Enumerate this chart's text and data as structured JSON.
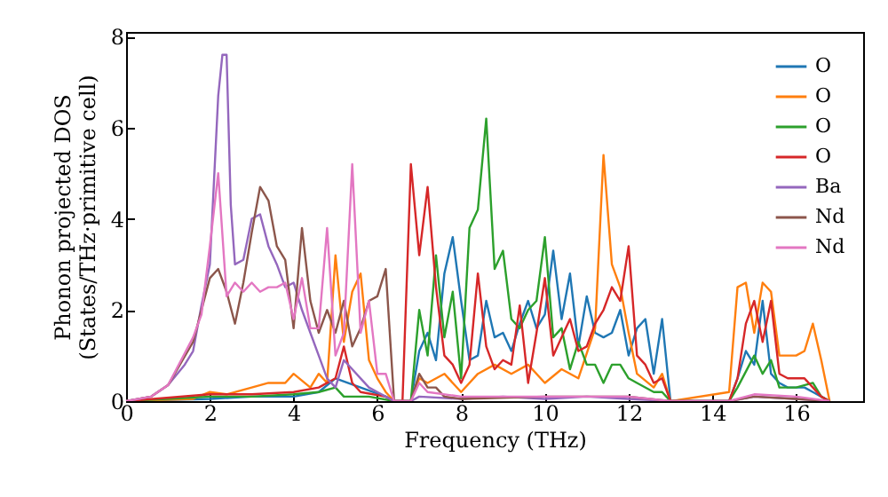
{
  "chart_data": {
    "type": "line",
    "xlabel": "Frequency (THz)",
    "ylabel": "Phonon projected DOS\n(States/THz·primitive cell)",
    "xlim": [
      0,
      17.6
    ],
    "ylim": [
      0,
      8.1
    ],
    "xticks": [
      0,
      2,
      4,
      6,
      8,
      10,
      12,
      14,
      16
    ],
    "yticks": [
      0,
      2,
      4,
      6,
      8
    ],
    "grid": false,
    "legend": "top right",
    "marker": "none",
    "line_style": "solid",
    "series": [
      {
        "name": "O",
        "color": "#1f77b4",
        "x": [
          0,
          2,
          3,
          4,
          4.6,
          5.0,
          5.6,
          6.2,
          6.4,
          6.8,
          7.0,
          7.2,
          7.4,
          7.6,
          7.8,
          8.0,
          8.2,
          8.4,
          8.6,
          8.8,
          9.0,
          9.2,
          9.4,
          9.6,
          9.8,
          10.0,
          10.2,
          10.4,
          10.6,
          10.8,
          11.0,
          11.2,
          11.4,
          11.6,
          11.8,
          12.0,
          12.2,
          12.4,
          12.6,
          12.8,
          13.0,
          14.4,
          14.6,
          14.8,
          15.0,
          15.2,
          15.4,
          15.6,
          15.8,
          16.0,
          16.2,
          16.4,
          16.6,
          16.8
        ],
        "values": [
          0,
          0.05,
          0.1,
          0.1,
          0.2,
          0.5,
          0.3,
          0.1,
          0,
          0,
          1.1,
          1.5,
          0.9,
          2.8,
          3.6,
          2.2,
          0.9,
          1.0,
          2.2,
          1.4,
          1.5,
          1.1,
          1.7,
          2.2,
          1.6,
          1.9,
          3.3,
          1.8,
          2.8,
          1.2,
          2.3,
          1.5,
          1.4,
          1.5,
          2.0,
          1.0,
          1.6,
          1.8,
          0.6,
          1.8,
          0,
          0,
          0.5,
          1.1,
          0.8,
          2.2,
          0.6,
          0.4,
          0.3,
          0.3,
          0.3,
          0.2,
          0.1,
          0
        ]
      },
      {
        "name": "O",
        "color": "#ff7f0e",
        "x": [
          0,
          1.6,
          2.0,
          2.4,
          3.0,
          3.4,
          3.8,
          4.0,
          4.4,
          4.6,
          4.8,
          5.0,
          5.2,
          5.4,
          5.6,
          5.8,
          6.0,
          6.2,
          6.4,
          6.8,
          7.0,
          7.2,
          7.6,
          8.0,
          8.4,
          8.8,
          9.2,
          9.6,
          10.0,
          10.4,
          10.8,
          11.2,
          11.4,
          11.6,
          11.8,
          12.0,
          12.2,
          12.6,
          12.8,
          13.0,
          14.4,
          14.6,
          14.8,
          15.0,
          15.2,
          15.4,
          15.6,
          15.8,
          16.0,
          16.2,
          16.4,
          16.6,
          16.8
        ],
        "values": [
          0,
          0.05,
          0.2,
          0.15,
          0.3,
          0.4,
          0.4,
          0.6,
          0.3,
          0.6,
          0.4,
          3.2,
          1.3,
          2.4,
          2.8,
          0.9,
          0.5,
          0.2,
          0,
          0,
          0.5,
          0.4,
          0.6,
          0.2,
          0.6,
          0.8,
          0.6,
          0.8,
          0.4,
          0.7,
          0.5,
          1.6,
          5.4,
          3.0,
          2.5,
          1.5,
          0.6,
          0.3,
          0.6,
          0,
          0.2,
          2.5,
          2.6,
          1.5,
          2.6,
          2.4,
          1.0,
          1.0,
          1.0,
          1.1,
          1.7,
          0.9,
          0
        ]
      },
      {
        "name": "O",
        "color": "#2ca02c",
        "x": [
          0,
          2,
          3,
          4,
          4.6,
          5.0,
          5.2,
          5.8,
          6.4,
          6.8,
          7.0,
          7.2,
          7.4,
          7.6,
          7.8,
          8.0,
          8.2,
          8.4,
          8.6,
          8.8,
          9.0,
          9.2,
          9.4,
          9.6,
          9.8,
          10.0,
          10.2,
          10.4,
          10.6,
          10.8,
          11.0,
          11.2,
          11.4,
          11.6,
          11.8,
          12.0,
          12.2,
          12.6,
          12.8,
          13.0,
          14.4,
          14.6,
          15.0,
          15.2,
          15.4,
          15.6,
          16.0,
          16.4,
          16.6,
          16.8
        ],
        "values": [
          0,
          0.1,
          0.1,
          0.15,
          0.2,
          0.3,
          0.1,
          0.1,
          0,
          0,
          2.0,
          1.0,
          3.2,
          1.4,
          2.4,
          0.5,
          3.8,
          4.2,
          6.2,
          2.9,
          3.3,
          1.8,
          1.6,
          2.0,
          2.2,
          3.6,
          1.4,
          1.6,
          0.7,
          1.3,
          0.8,
          0.8,
          0.4,
          0.8,
          0.8,
          0.5,
          0.4,
          0.2,
          0.2,
          0,
          0,
          0.3,
          1.0,
          0.6,
          0.9,
          0.3,
          0.3,
          0.4,
          0.1,
          0
        ]
      },
      {
        "name": "O",
        "color": "#d62728",
        "x": [
          0,
          2,
          3,
          4,
          4.6,
          5.0,
          5.2,
          5.4,
          5.6,
          6.2,
          6.4,
          6.6,
          6.8,
          7.0,
          7.2,
          7.4,
          7.6,
          7.8,
          8.0,
          8.2,
          8.4,
          8.6,
          8.8,
          9.0,
          9.2,
          9.4,
          9.6,
          9.8,
          10.0,
          10.2,
          10.4,
          10.6,
          10.8,
          11.0,
          11.2,
          11.4,
          11.6,
          11.8,
          12.0,
          12.2,
          12.4,
          12.6,
          12.8,
          13.0,
          14.4,
          14.6,
          14.8,
          15.0,
          15.2,
          15.4,
          15.6,
          15.8,
          16.0,
          16.2,
          16.4,
          16.6,
          16.8
        ],
        "values": [
          0,
          0.15,
          0.15,
          0.2,
          0.3,
          0.5,
          1.2,
          0.4,
          0.2,
          0.1,
          0,
          0,
          5.2,
          3.2,
          4.7,
          2.5,
          1.0,
          0.8,
          0.4,
          0.8,
          2.8,
          1.2,
          0.7,
          0.9,
          0.8,
          2.1,
          0.4,
          1.5,
          2.7,
          1.0,
          1.4,
          1.8,
          1.1,
          1.2,
          1.7,
          2.0,
          2.5,
          2.2,
          3.4,
          1.0,
          0.8,
          0.4,
          0.5,
          0,
          0,
          0.5,
          1.7,
          2.2,
          1.3,
          2.2,
          0.6,
          0.5,
          0.5,
          0.5,
          0.3,
          0.1,
          0
        ]
      },
      {
        "name": "Ba",
        "color": "#9467bd",
        "x": [
          0,
          0.6,
          1.0,
          1.4,
          1.6,
          1.8,
          2.0,
          2.2,
          2.3,
          2.4,
          2.5,
          2.6,
          2.8,
          3.0,
          3.2,
          3.4,
          3.6,
          3.8,
          4.0,
          4.2,
          4.4,
          4.6,
          4.8,
          5.0,
          5.2,
          5.4,
          5.6,
          5.8,
          6.0,
          6.2,
          6.4,
          6.8,
          7.0,
          8.0,
          9.0,
          10.0,
          11.0,
          12.0,
          13.0,
          14.4,
          15.0,
          16.0,
          16.8
        ],
        "values": [
          0,
          0.1,
          0.35,
          0.8,
          1.1,
          2.1,
          3.0,
          6.7,
          7.6,
          7.6,
          4.3,
          3.0,
          3.1,
          4.0,
          4.1,
          3.4,
          3.0,
          2.5,
          2.6,
          2.0,
          1.5,
          1.0,
          0.5,
          0.3,
          0.9,
          0.7,
          0.5,
          0.3,
          0.2,
          0.1,
          0,
          0,
          0.1,
          0.05,
          0.1,
          0.05,
          0.1,
          0.05,
          0,
          0,
          0.1,
          0.05,
          0
        ]
      },
      {
        "name": "Nd",
        "color": "#8c564b",
        "x": [
          0,
          0.6,
          1.0,
          1.6,
          2.0,
          2.2,
          2.4,
          2.6,
          2.8,
          3.0,
          3.2,
          3.4,
          3.6,
          3.8,
          4.0,
          4.2,
          4.4,
          4.6,
          4.8,
          5.0,
          5.2,
          5.4,
          5.6,
          5.8,
          6.0,
          6.2,
          6.4,
          6.8,
          7.0,
          7.2,
          7.4,
          7.6,
          8.0,
          10.0,
          12.0,
          13.0,
          14.4,
          15.0,
          16.0,
          16.8
        ],
        "values": [
          0,
          0.1,
          0.35,
          1.3,
          2.7,
          2.9,
          2.4,
          1.7,
          2.6,
          3.7,
          4.7,
          4.4,
          3.4,
          3.1,
          1.6,
          3.8,
          2.2,
          1.5,
          2.0,
          1.5,
          2.2,
          1.2,
          1.6,
          2.2,
          2.3,
          2.9,
          0,
          0,
          0.6,
          0.3,
          0.3,
          0.1,
          0.05,
          0.1,
          0.1,
          0,
          0,
          0.1,
          0.05,
          0
        ]
      },
      {
        "name": "Nd",
        "color": "#e377c2",
        "x": [
          0,
          0.6,
          1.0,
          1.6,
          1.8,
          2.0,
          2.2,
          2.4,
          2.6,
          2.8,
          3.0,
          3.2,
          3.4,
          3.6,
          3.8,
          4.0,
          4.2,
          4.4,
          4.6,
          4.8,
          5.0,
          5.2,
          5.4,
          5.6,
          5.8,
          6.0,
          6.2,
          6.4,
          6.8,
          7.0,
          7.2,
          8.0,
          10.0,
          12.0,
          13.0,
          14.4,
          15.0,
          16.0,
          16.8
        ],
        "values": [
          0,
          0.1,
          0.35,
          1.4,
          1.9,
          3.4,
          5.0,
          2.3,
          2.6,
          2.4,
          2.6,
          2.4,
          2.5,
          2.5,
          2.6,
          1.8,
          2.7,
          1.6,
          1.6,
          3.8,
          1.0,
          1.5,
          5.2,
          1.5,
          2.2,
          0.6,
          0.6,
          0,
          0,
          0.4,
          0.2,
          0.1,
          0.1,
          0.1,
          0,
          0,
          0.15,
          0.1,
          0
        ]
      }
    ]
  }
}
